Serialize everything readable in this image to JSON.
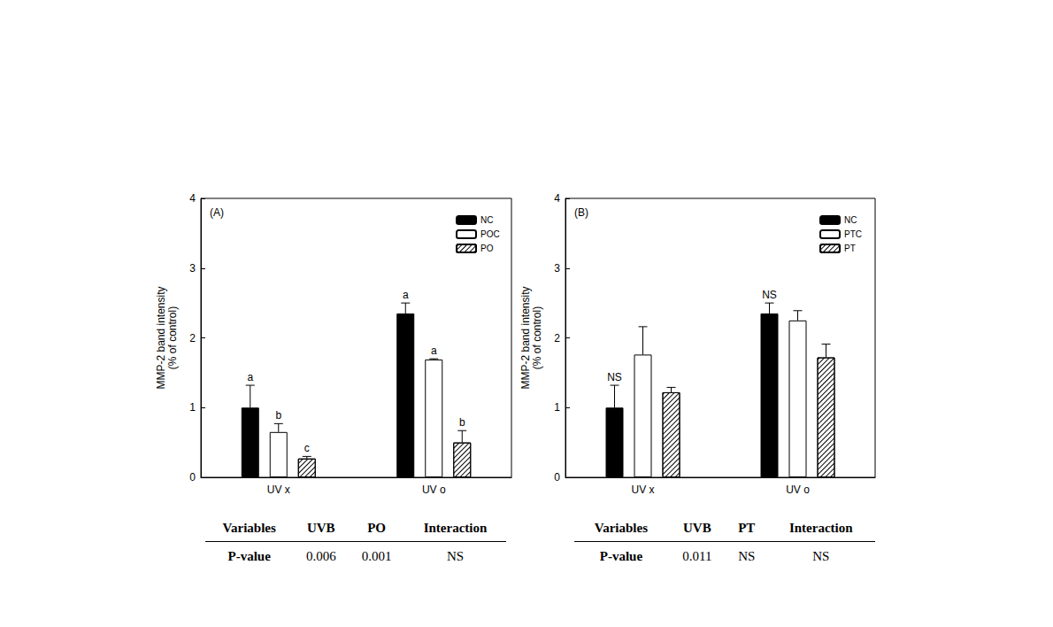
{
  "chart_data": [
    {
      "type": "bar",
      "title": "(A)",
      "categories": [
        "UV x",
        "UV o"
      ],
      "ylabel": "MMP-2 band intensity\n(% of control)",
      "ylim": [
        0,
        4
      ],
      "yticks": [
        0,
        1,
        2,
        3,
        4
      ],
      "legend": "upper right",
      "series": [
        {
          "name": "NC",
          "color": "#000000",
          "values": [
            1.0,
            2.35
          ],
          "errors": [
            0.32,
            0.15
          ],
          "letters": [
            "a",
            "a"
          ]
        },
        {
          "name": "POC",
          "color": "#ffffff",
          "values": [
            0.65,
            1.69
          ],
          "errors": [
            0.12,
            0.01
          ],
          "letters": [
            "b",
            "a"
          ]
        },
        {
          "name": "PO",
          "color": "#ffffff",
          "values": [
            0.27,
            0.5
          ],
          "errors": [
            0.03,
            0.17
          ],
          "letters": [
            "c",
            "b"
          ]
        }
      ],
      "table": {
        "columns": [
          "Variables",
          "UVB",
          "PO",
          "Interaction"
        ],
        "rows": [
          [
            "P-value",
            "0.006",
            "0.001",
            "NS"
          ]
        ]
      }
    },
    {
      "type": "bar",
      "title": "(B)",
      "categories": [
        "UV x",
        "UV o"
      ],
      "ylabel": "MMP-2 band intensity\n(% of control)",
      "ylim": [
        0,
        4
      ],
      "yticks": [
        0,
        1,
        2,
        3,
        4
      ],
      "legend": "upper right",
      "series": [
        {
          "name": "NC",
          "color": "#000000",
          "values": [
            1.0,
            2.35
          ],
          "errors": [
            0.32,
            0.15
          ],
          "letters": [
            "NS",
            "NS"
          ]
        },
        {
          "name": "PTC",
          "color": "#ffffff",
          "values": [
            1.76,
            2.25
          ],
          "errors": [
            0.4,
            0.14
          ],
          "letters": [
            null,
            null
          ]
        },
        {
          "name": "PT",
          "color": "#ffffff",
          "values": [
            1.22,
            1.72
          ],
          "errors": [
            0.07,
            0.19
          ],
          "letters": [
            null,
            null
          ]
        }
      ],
      "table": {
        "columns": [
          "Variables",
          "UVB",
          "PT",
          "Interaction"
        ],
        "rows": [
          [
            "P-value",
            "0.011",
            "NS",
            "NS"
          ]
        ]
      }
    }
  ]
}
